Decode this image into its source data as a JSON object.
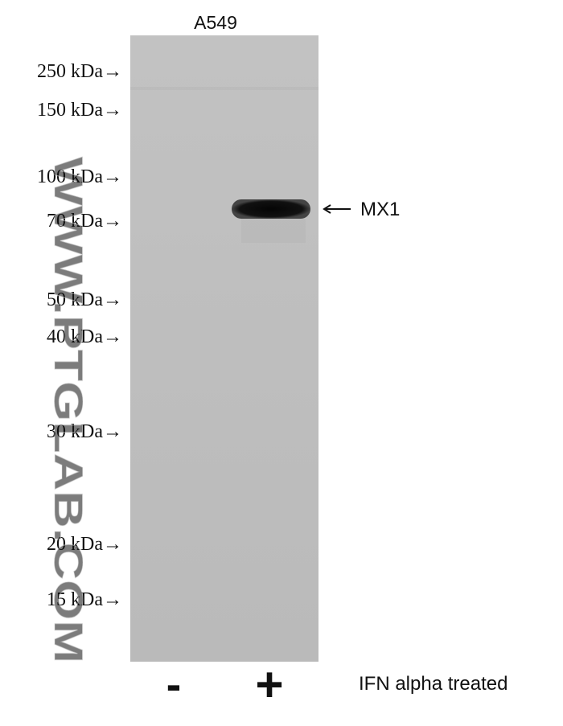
{
  "header": {
    "cell_line": "A549"
  },
  "markers": [
    "250 kDa→",
    "150 kDa→",
    "100 kDa→",
    "70 kDa→",
    "50 kDa→",
    "40 kDa→",
    "30 kDa→",
    "20 kDa→",
    "15 kDa→"
  ],
  "band": {
    "label": "MX1"
  },
  "lanes": [
    "-",
    "+"
  ],
  "treatment": "IFN alpha treated",
  "watermark": "WWW.PTGLAB.COM"
}
